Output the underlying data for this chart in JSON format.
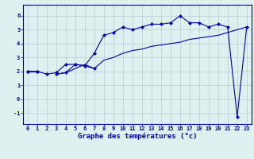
{
  "x": [
    0,
    1,
    2,
    3,
    4,
    5,
    6,
    7,
    8,
    9,
    10,
    11,
    12,
    13,
    14,
    15,
    16,
    17,
    18,
    19,
    20,
    21,
    22,
    23
  ],
  "line1": [
    2.0,
    2.0,
    1.8,
    1.9,
    2.5,
    2.5,
    2.4,
    2.2,
    null,
    null,
    null,
    null,
    null,
    null,
    null,
    null,
    null,
    null,
    null,
    null,
    null,
    null,
    null,
    null
  ],
  "line2": [
    2.0,
    2.0,
    null,
    1.8,
    1.9,
    2.5,
    2.4,
    3.3,
    4.6,
    4.8,
    5.2,
    5.0,
    5.2,
    5.4,
    5.4,
    5.5,
    6.0,
    5.5,
    5.5,
    5.2,
    5.4,
    5.2,
    -1.3,
    5.2
  ],
  "line3": [
    2.0,
    2.0,
    null,
    1.8,
    1.9,
    2.2,
    2.5,
    2.2,
    2.8,
    3.0,
    3.3,
    3.5,
    3.6,
    3.8,
    3.9,
    4.0,
    4.1,
    4.3,
    4.4,
    4.5,
    4.6,
    4.8,
    5.0,
    5.2
  ],
  "bg_color": "#dff0f0",
  "grid_color": "#bbcccc",
  "line_color": "#0000aa",
  "xlabel": "Graphe des températures (°c)",
  "xlabel_fontsize": 6.5,
  "tick_fontsize": 5.0,
  "yticks": [
    -1,
    0,
    1,
    2,
    3,
    4,
    5,
    6
  ],
  "ylim": [
    -1.8,
    6.8
  ],
  "xlim": [
    -0.5,
    23.5
  ]
}
